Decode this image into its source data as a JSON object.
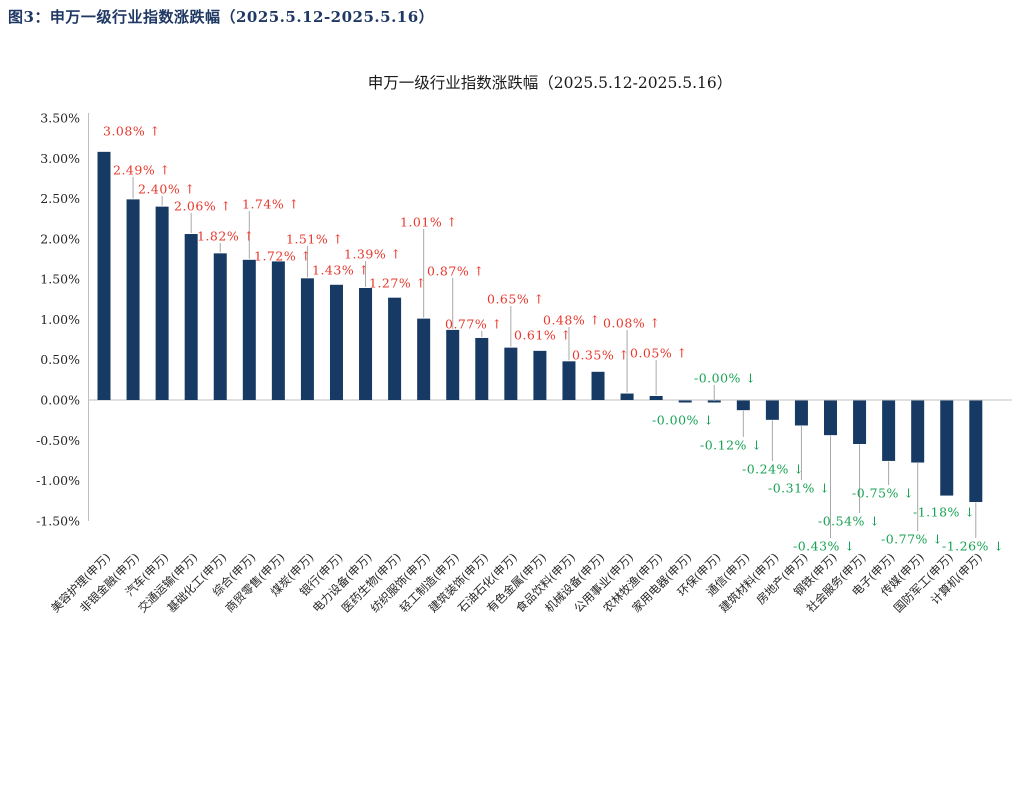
{
  "figure": {
    "caption": "图3：申万一级行业指数涨跌幅（2025.5.12-2025.5.16）"
  },
  "chart": {
    "title": "申万一级行业指数涨跌幅（2025.5.12-2025.5.16）"
  },
  "chart_data": {
    "type": "bar",
    "title": "申万一级行业指数涨跌幅（2025.5.12-2025.5.16）",
    "xlabel": "",
    "ylabel": "",
    "ylim": [
      -1.5,
      3.5
    ],
    "ytick_step": 0.5,
    "yticks": [
      "3.50%",
      "3.00%",
      "2.50%",
      "2.00%",
      "1.50%",
      "1.00%",
      "0.50%",
      "0.00%",
      "-0.50%",
      "-1.00%",
      "-1.50%"
    ],
    "grid": "zero-line-only",
    "legend": "none",
    "categories": [
      "美容护理(申万)",
      "非银金融(申万)",
      "汽车(申万)",
      "交通运输(申万)",
      "基础化工(申万)",
      "综合(申万)",
      "商贸零售(申万)",
      "煤炭(申万)",
      "银行(申万)",
      "电力设备(申万)",
      "医药生物(申万)",
      "纺织服饰(申万)",
      "轻工制造(申万)",
      "建筑装饰(申万)",
      "石油石化(申万)",
      "有色金属(申万)",
      "食品饮料(申万)",
      "机械设备(申万)",
      "公用事业(申万)",
      "农林牧渔(申万)",
      "家用电器(申万)",
      "环保(申万)",
      "通信(申万)",
      "建筑材料(申万)",
      "房地产(申万)",
      "钢铁(申万)",
      "社会服务(申万)",
      "电子(申万)",
      "传媒(申万)",
      "国防军工(申万)",
      "计算机(申万)"
    ],
    "values": [
      3.08,
      2.49,
      2.4,
      2.06,
      1.82,
      1.74,
      1.72,
      1.51,
      1.43,
      1.39,
      1.27,
      1.01,
      0.87,
      0.77,
      0.65,
      0.61,
      0.48,
      0.35,
      0.08,
      0.05,
      -0.0,
      -0.0,
      -0.12,
      -0.24,
      -0.31,
      -0.43,
      -0.54,
      -0.75,
      -0.77,
      -1.18,
      -1.26
    ],
    "labels": [
      "3.08% ↑",
      "2.49% ↑",
      "2.40% ↑",
      "2.06% ↑",
      "1.82% ↑",
      "1.74% ↑",
      "1.72% ↑",
      "1.51% ↑",
      "1.43% ↑",
      "1.39% ↑",
      "1.27% ↑",
      "1.01% ↑",
      "0.87% ↑",
      "0.77% ↑",
      "0.65% ↑",
      "0.61% ↑",
      "0.48% ↑",
      "0.35% ↑",
      "0.08% ↑",
      "0.05% ↑",
      "-0.00% ↓",
      "-0.00% ↓",
      "-0.12% ↓",
      "-0.24% ↓",
      "-0.31% ↓",
      "-0.43% ↓",
      "-0.54% ↓",
      "-0.75% ↓",
      "-0.77% ↓",
      "-1.18% ↓",
      "-1.26% ↓"
    ],
    "colors": {
      "bar": "#163a64",
      "positive_label": "#e8372c",
      "negative_label": "#17a253",
      "axis": "#bfbfbf",
      "leader": "#a8a8a8",
      "tick_text": "#262626",
      "caption_text": "#1f3864"
    }
  }
}
